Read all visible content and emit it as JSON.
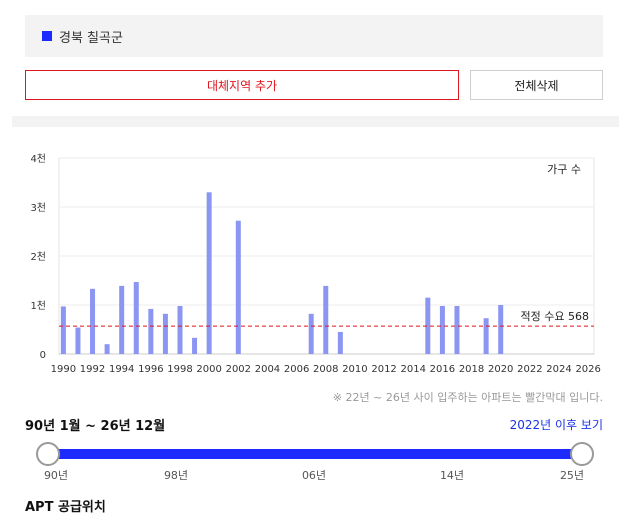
{
  "region": {
    "name": "경북 칠곡군",
    "color": "#1a2bff"
  },
  "buttons": {
    "add_label": "대체지역 추가",
    "clear_label": "전체삭제"
  },
  "chart_data": {
    "type": "bar",
    "unit_label": "가구 수",
    "y_ticks": [
      "0",
      "1천",
      "2천",
      "3천",
      "4천"
    ],
    "ylim": [
      0,
      4000
    ],
    "xlim": [
      1989.7,
      2026.4
    ],
    "x_ticks": [
      1990,
      1992,
      1994,
      1996,
      1998,
      2000,
      2002,
      2004,
      2006,
      2008,
      2010,
      2012,
      2014,
      2016,
      2018,
      2020,
      2022,
      2024,
      2026
    ],
    "bar_color": "#8b95f2",
    "x": [
      1990,
      1991,
      1992,
      1993,
      1994,
      1995,
      1996,
      1997,
      1998,
      1999,
      2000,
      2002,
      2007,
      2008,
      2009,
      2015,
      2016,
      2017,
      2019,
      2020
    ],
    "values": [
      970,
      540,
      1330,
      200,
      1390,
      1470,
      920,
      820,
      980,
      330,
      3300,
      2720,
      820,
      1390,
      450,
      1150,
      980,
      980,
      730,
      1000
    ],
    "reference": {
      "label": "적정 수요 568",
      "value": 568,
      "color": "#e0141e"
    },
    "grid": true
  },
  "note": "※ 22년 ~ 26년 사이 입주하는 아파트는 빨간막대 입니다.",
  "period": {
    "label": "90년 1월 ~ 26년 12월",
    "link": "2022년 이후 보기"
  },
  "slider": {
    "ticks": [
      "90년",
      "98년",
      "06년",
      "14년",
      "25년"
    ]
  },
  "section_title": "APT 공급위치"
}
